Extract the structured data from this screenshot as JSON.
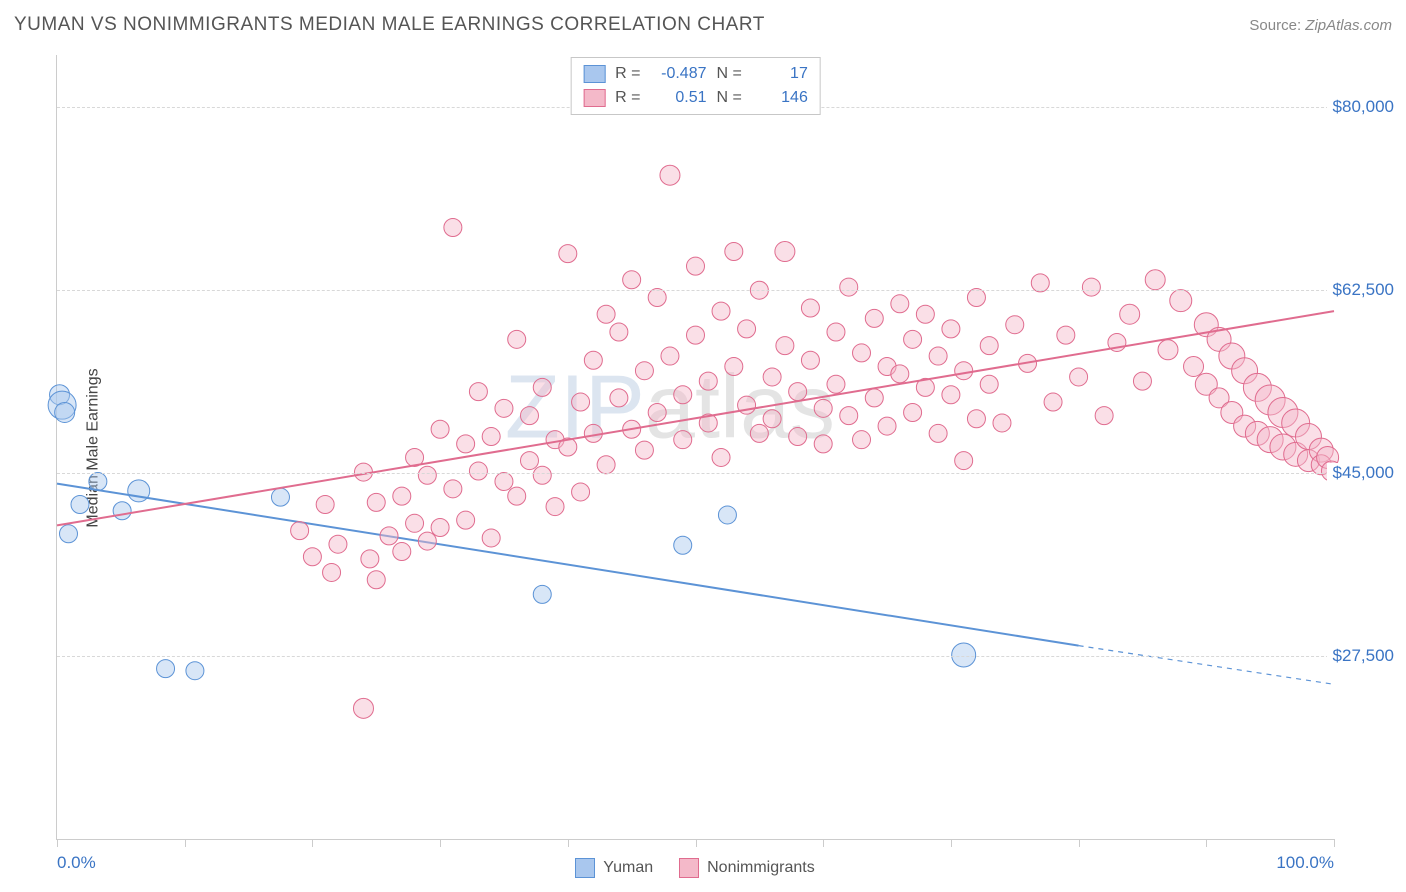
{
  "header": {
    "title": "YUMAN VS NONIMMIGRANTS MEDIAN MALE EARNINGS CORRELATION CHART",
    "source_label": "Source: ",
    "source_value": "ZipAtlas.com"
  },
  "chart": {
    "type": "scatter",
    "y_axis_title": "Median Male Earnings",
    "xlim": [
      0,
      100
    ],
    "ylim": [
      10000,
      85000
    ],
    "x_tick_positions": [
      0,
      10,
      20,
      30,
      40,
      50,
      60,
      70,
      80,
      90,
      100
    ],
    "xtick_labels": {
      "0": "0.0%",
      "100": "100.0%"
    },
    "y_gridlines": [
      27500,
      45000,
      62500,
      80000
    ],
    "y_labels": {
      "27500": "$27,500",
      "45000": "$45,000",
      "62500": "$62,500",
      "80000": "$80,000"
    },
    "background_color": "#ffffff",
    "grid_color": "#d8d8d8",
    "axis_color": "#cccccc",
    "label_color": "#3a74c4",
    "label_fontsize": 17,
    "title_fontsize": 19,
    "marker_radius": 9,
    "marker_opacity": 0.45,
    "line_width": 2,
    "watermark": {
      "part1": "ZIP",
      "part2": "atlas",
      "color1": "rgba(130,160,200,0.28)",
      "color2": "rgba(130,130,130,0.22)",
      "fontsize": 90
    },
    "series": [
      {
        "name": "Yuman",
        "fill": "#a9c7ee",
        "stroke": "#5c93d6",
        "r": -0.487,
        "n": 17,
        "trend": {
          "x1": 0,
          "y1": 44000,
          "x2": 80,
          "y2": 28500,
          "solid_until_x": 80,
          "dash_to_x": 100,
          "dash_y": 24800
        },
        "points": [
          [
            0.2,
            52500,
            10
          ],
          [
            0.4,
            51500,
            14
          ],
          [
            0.6,
            50800,
            10
          ],
          [
            0.9,
            39200,
            9
          ],
          [
            1.8,
            42000,
            9
          ],
          [
            3.2,
            44200,
            9
          ],
          [
            5.1,
            41400,
            9
          ],
          [
            6.4,
            43300,
            11
          ],
          [
            8.5,
            26300,
            9
          ],
          [
            10.8,
            26100,
            9
          ],
          [
            17.5,
            42700,
            9
          ],
          [
            38.0,
            33400,
            9
          ],
          [
            49.0,
            38100,
            9
          ],
          [
            52.5,
            41000,
            9
          ],
          [
            71.0,
            27600,
            12
          ]
        ]
      },
      {
        "name": "Nonimmigrants",
        "fill": "#f4b9c9",
        "stroke": "#e06c8f",
        "r": 0.51,
        "n": 146,
        "trend": {
          "x1": 0,
          "y1": 40000,
          "x2": 100,
          "y2": 60500,
          "solid_until_x": 100
        },
        "points": [
          [
            19,
            39500,
            9
          ],
          [
            20,
            37000,
            9
          ],
          [
            21,
            42000,
            9
          ],
          [
            21.5,
            35500,
            9
          ],
          [
            22,
            38200,
            9
          ],
          [
            24,
            22500,
            10
          ],
          [
            24,
            45100,
            9
          ],
          [
            24.5,
            36800,
            9
          ],
          [
            25,
            34800,
            9
          ],
          [
            25,
            42200,
            9
          ],
          [
            26,
            39000,
            9
          ],
          [
            27,
            42800,
            9
          ],
          [
            27,
            37500,
            9
          ],
          [
            28,
            46500,
            9
          ],
          [
            28,
            40200,
            9
          ],
          [
            29,
            38500,
            9
          ],
          [
            29,
            44800,
            9
          ],
          [
            30,
            39800,
            9
          ],
          [
            30,
            49200,
            9
          ],
          [
            31,
            68500,
            9
          ],
          [
            31,
            43500,
            9
          ],
          [
            32,
            47800,
            9
          ],
          [
            32,
            40500,
            9
          ],
          [
            33,
            52800,
            9
          ],
          [
            33,
            45200,
            9
          ],
          [
            34,
            38800,
            9
          ],
          [
            34,
            48500,
            9
          ],
          [
            35,
            51200,
            9
          ],
          [
            35,
            44200,
            9
          ],
          [
            36,
            42800,
            9
          ],
          [
            36,
            57800,
            9
          ],
          [
            37,
            46200,
            9
          ],
          [
            37,
            50500,
            9
          ],
          [
            38,
            44800,
            9
          ],
          [
            38,
            53200,
            9
          ],
          [
            39,
            48200,
            9
          ],
          [
            39,
            41800,
            9
          ],
          [
            40,
            66000,
            9
          ],
          [
            40,
            47500,
            9
          ],
          [
            41,
            51800,
            9
          ],
          [
            41,
            43200,
            9
          ],
          [
            42,
            55800,
            9
          ],
          [
            42,
            48800,
            9
          ],
          [
            43,
            60200,
            9
          ],
          [
            43,
            45800,
            9
          ],
          [
            44,
            52200,
            9
          ],
          [
            44,
            58500,
            9
          ],
          [
            45,
            63500,
            9
          ],
          [
            45,
            49200,
            9
          ],
          [
            46,
            54800,
            9
          ],
          [
            46,
            47200,
            9
          ],
          [
            47,
            61800,
            9
          ],
          [
            47,
            50800,
            9
          ],
          [
            48,
            73500,
            10
          ],
          [
            48,
            56200,
            9
          ],
          [
            49,
            52500,
            9
          ],
          [
            49,
            48200,
            9
          ],
          [
            50,
            58200,
            9
          ],
          [
            50,
            64800,
            9
          ],
          [
            51,
            53800,
            9
          ],
          [
            51,
            49800,
            9
          ],
          [
            52,
            60500,
            9
          ],
          [
            52,
            46500,
            9
          ],
          [
            53,
            55200,
            9
          ],
          [
            53,
            66200,
            9
          ],
          [
            54,
            51500,
            9
          ],
          [
            54,
            58800,
            9
          ],
          [
            55,
            48800,
            9
          ],
          [
            55,
            62500,
            9
          ],
          [
            56,
            54200,
            9
          ],
          [
            56,
            50200,
            9
          ],
          [
            57,
            57200,
            9
          ],
          [
            57,
            66200,
            10
          ],
          [
            58,
            52800,
            9
          ],
          [
            58,
            48500,
            9
          ],
          [
            59,
            60800,
            9
          ],
          [
            59,
            55800,
            9
          ],
          [
            60,
            51200,
            9
          ],
          [
            60,
            47800,
            9
          ],
          [
            61,
            58500,
            9
          ],
          [
            61,
            53500,
            9
          ],
          [
            62,
            50500,
            9
          ],
          [
            62,
            62800,
            9
          ],
          [
            63,
            56500,
            9
          ],
          [
            63,
            48200,
            9
          ],
          [
            64,
            59800,
            9
          ],
          [
            64,
            52200,
            9
          ],
          [
            65,
            55200,
            9
          ],
          [
            65,
            49500,
            9
          ],
          [
            66,
            61200,
            9
          ],
          [
            66,
            54500,
            9
          ],
          [
            67,
            50800,
            9
          ],
          [
            67,
            57800,
            9
          ],
          [
            68,
            53200,
            9
          ],
          [
            68,
            60200,
            9
          ],
          [
            69,
            48800,
            9
          ],
          [
            69,
            56200,
            9
          ],
          [
            70,
            52500,
            9
          ],
          [
            70,
            58800,
            9
          ],
          [
            71,
            46200,
            9
          ],
          [
            71,
            54800,
            9
          ],
          [
            72,
            50200,
            9
          ],
          [
            72,
            61800,
            9
          ],
          [
            73,
            57200,
            9
          ],
          [
            73,
            53500,
            9
          ],
          [
            74,
            49800,
            9
          ],
          [
            75,
            59200,
            9
          ],
          [
            76,
            55500,
            9
          ],
          [
            77,
            63200,
            9
          ],
          [
            78,
            51800,
            9
          ],
          [
            79,
            58200,
            9
          ],
          [
            80,
            54200,
            9
          ],
          [
            81,
            62800,
            9
          ],
          [
            82,
            50500,
            9
          ],
          [
            83,
            57500,
            9
          ],
          [
            84,
            60200,
            10
          ],
          [
            85,
            53800,
            9
          ],
          [
            86,
            63500,
            10
          ],
          [
            87,
            56800,
            10
          ],
          [
            88,
            61500,
            11
          ],
          [
            89,
            55200,
            10
          ],
          [
            90,
            59200,
            12
          ],
          [
            90,
            53500,
            11
          ],
          [
            91,
            57800,
            12
          ],
          [
            91,
            52200,
            10
          ],
          [
            92,
            56200,
            13
          ],
          [
            92,
            50800,
            11
          ],
          [
            93,
            54800,
            13
          ],
          [
            93,
            49500,
            11
          ],
          [
            94,
            53200,
            14
          ],
          [
            94,
            48800,
            12
          ],
          [
            95,
            52000,
            15
          ],
          [
            95,
            48200,
            13
          ],
          [
            96,
            50800,
            15
          ],
          [
            96,
            47500,
            13
          ],
          [
            97,
            49800,
            14
          ],
          [
            97,
            46800,
            12
          ],
          [
            98,
            48500,
            13
          ],
          [
            98,
            46200,
            11
          ],
          [
            99,
            47200,
            12
          ],
          [
            99,
            45800,
            10
          ],
          [
            99.5,
            46500,
            11
          ],
          [
            99.8,
            45200,
            10
          ]
        ]
      }
    ]
  }
}
